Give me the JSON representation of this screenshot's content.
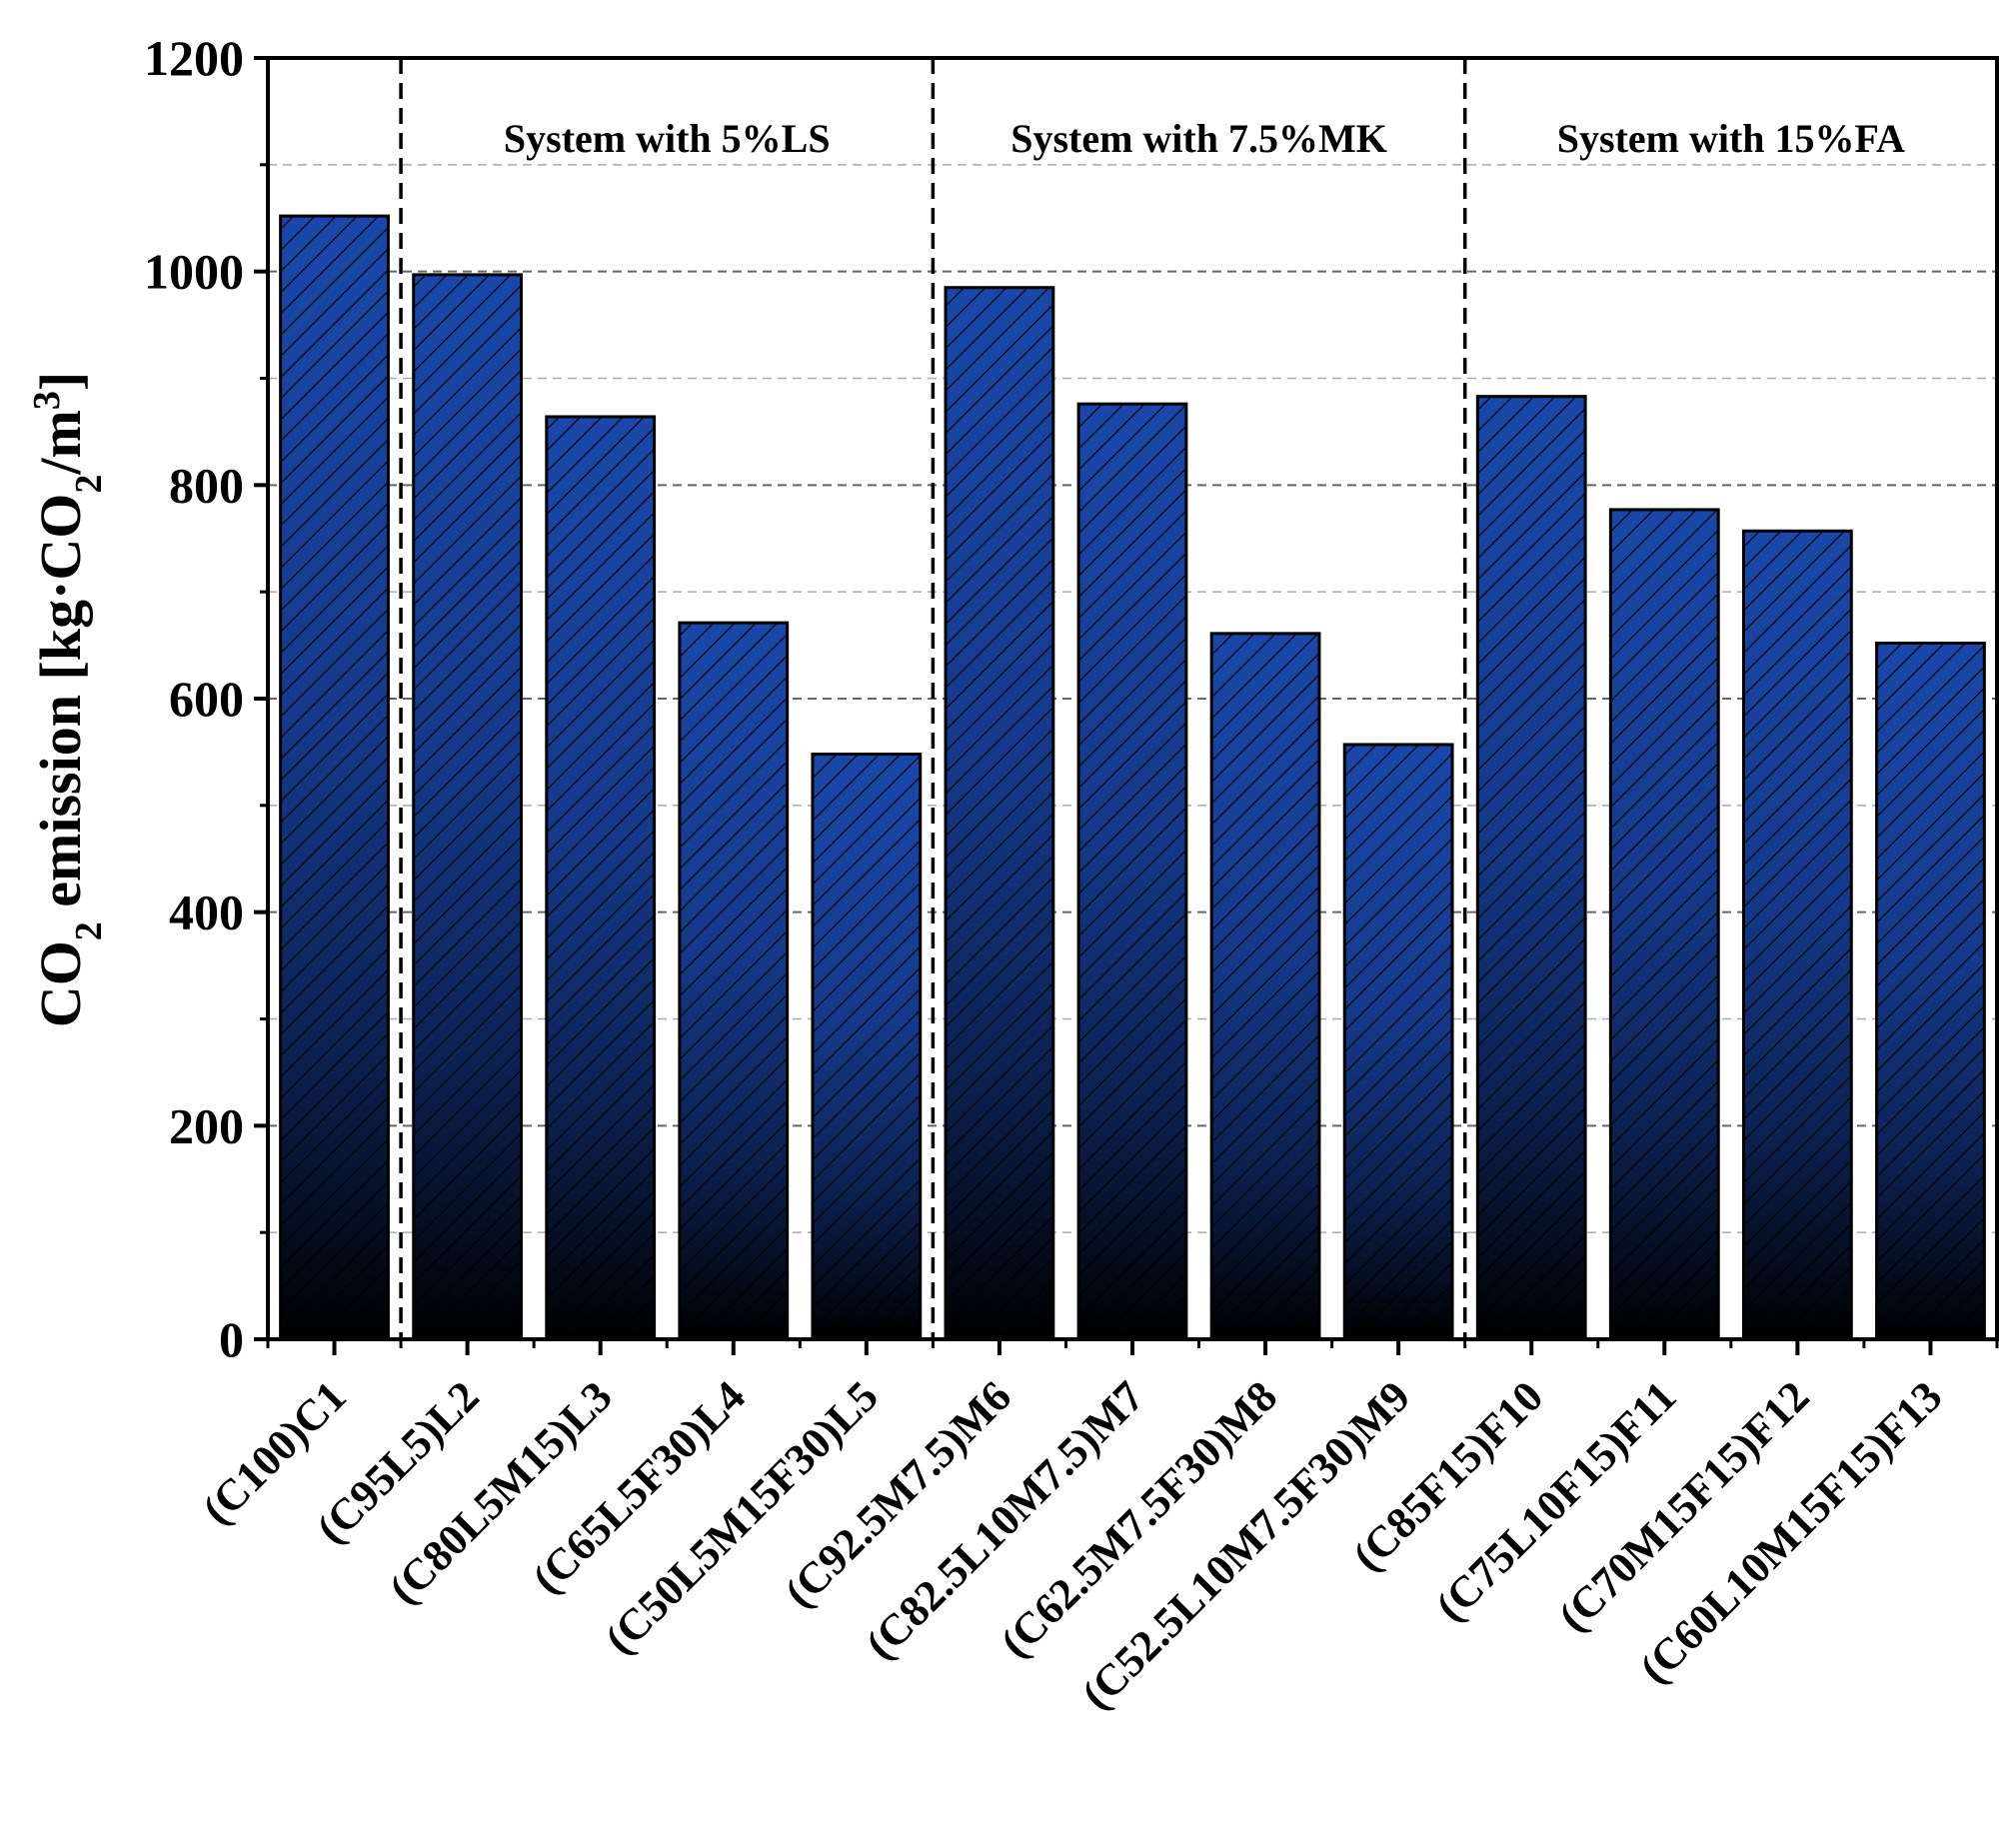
{
  "chart_data": {
    "type": "bar",
    "title": "",
    "xlabel": "",
    "ylabel": {
      "prefix": "CO",
      "sub1": "2",
      "middle": " emission [kg·CO",
      "sub2": "2",
      "after": "/m",
      "sup": "3",
      "suffix": "]"
    },
    "ylim": [
      0,
      1200
    ],
    "yticks": [
      0,
      200,
      400,
      600,
      800,
      1000,
      1200
    ],
    "grid": true,
    "categories": [
      "(C100)C1",
      "(C95L5)L2",
      "(C80L5M15)L3",
      "(C65L5F30)L4",
      "(C50L5M15F30)L5",
      "(C92.5M7.5)M6",
      "(C82.5L10M7.5)M7",
      "(C62.5M7.5F30)M8",
      "(C52.5L10M7.5F30)M9",
      "(C85F15)F10",
      "(C75L10F15)F11",
      "(C70M15F15)F12",
      "(C60L10M15F15)F13"
    ],
    "values": [
      1052,
      997,
      864,
      671,
      548,
      985,
      876,
      661,
      557,
      883,
      777,
      757,
      652
    ],
    "groups": [
      {
        "label": "System with 5%LS",
        "start": 1,
        "end": 4
      },
      {
        "label": "System with 7.5%MK",
        "start": 5,
        "end": 8
      },
      {
        "label": "System with 15%FA",
        "start": 9,
        "end": 12
      }
    ],
    "colors": {
      "bar_top": "#1a47a8",
      "bar_bottom": "#000000",
      "hatch": "#000000",
      "grid_major": "#666666",
      "grid_minor": "#aaaaaa"
    }
  }
}
